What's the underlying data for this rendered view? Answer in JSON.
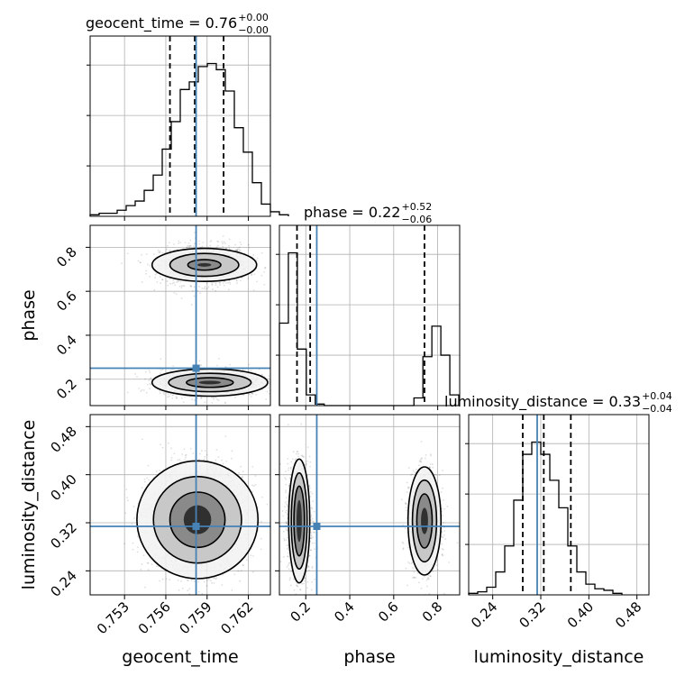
{
  "chart_data": {
    "type": "corner",
    "parameters": [
      "geocent_time",
      "phase",
      "luminosity_distance"
    ],
    "truths": {
      "geocent_time": 0.7582,
      "phase": 0.25,
      "luminosity_distance": 0.314
    },
    "colors": {
      "truth": "#4682b4",
      "hist": "#000000",
      "grid": "#b0b0b0",
      "quantile": "#000000"
    },
    "grid": true,
    "titles": [
      {
        "param": "geocent_time",
        "text": "geocent_time = 0.76",
        "plus": "+0.00",
        "minus": "−0.00"
      },
      {
        "param": "phase",
        "text": "phase = 0.22",
        "plus": "+0.52",
        "minus": "−0.06"
      },
      {
        "param": "luminosity_distance",
        "text": "luminosity_distance = 0.33",
        "plus": "+0.04",
        "minus": "−0.04"
      }
    ],
    "axis_labels": {
      "geocent_time": "geocent_time",
      "phase": "phase",
      "luminosity_distance": "luminosity_distance"
    },
    "ranges": {
      "geocent_time": [
        0.7505,
        0.7636
      ],
      "phase": [
        0.08,
        0.9
      ],
      "luminosity_distance": [
        0.2,
        0.5
      ]
    },
    "ticks": {
      "geocent_time": [
        {
          "v": 0.753,
          "label": "0.753"
        },
        {
          "v": 0.756,
          "label": "0.756"
        },
        {
          "v": 0.759,
          "label": "0.759"
        },
        {
          "v": 0.762,
          "label": "0.762"
        }
      ],
      "phase": [
        {
          "v": 0.2,
          "label": "0.2"
        },
        {
          "v": 0.4,
          "label": "0.4"
        },
        {
          "v": 0.6,
          "label": "0.6"
        },
        {
          "v": 0.8,
          "label": "0.8"
        }
      ],
      "luminosity_distance": [
        {
          "v": 0.24,
          "label": "0.24"
        },
        {
          "v": 0.32,
          "label": "0.32"
        },
        {
          "v": 0.4,
          "label": "0.40"
        },
        {
          "v": 0.48,
          "label": "0.48"
        }
      ]
    },
    "quantiles": {
      "geocent_time": [
        0.7563,
        0.7581,
        0.7602
      ],
      "phase": [
        0.16,
        0.22,
        0.74
      ],
      "luminosity_distance": [
        0.29,
        0.325,
        0.37
      ]
    },
    "histograms": {
      "geocent_time": {
        "edges_start": 0.7505,
        "bin_width": 0.000655,
        "counts": [
          1,
          2,
          2,
          4,
          7,
          10,
          17,
          27,
          44,
          62,
          83,
          88,
          98,
          100,
          96,
          82,
          58,
          42,
          22,
          8,
          3,
          1
        ]
      },
      "phase": {
        "edges_start": 0.08,
        "bin_width": 0.0408,
        "counts": [
          54,
          100,
          37,
          7,
          1,
          0,
          0,
          0,
          0,
          0,
          0,
          0,
          0,
          0,
          0,
          5,
          32,
          52,
          33,
          7
        ]
      },
      "luminosity_distance": {
        "edges_start": 0.2,
        "bin_width": 0.015,
        "counts": [
          1,
          2,
          5,
          15,
          32,
          62,
          92,
          100,
          92,
          75,
          57,
          32,
          15,
          7,
          4,
          3,
          1
        ]
      }
    },
    "hist_ymax": {
      "geocent_time": 118,
      "phase": 118,
      "luminosity_distance": 118
    },
    "hist_yticks": {
      "geocent_time": [
        33,
        66,
        99
      ],
      "phase": [
        33,
        66,
        99
      ],
      "luminosity_distance": [
        33,
        66,
        99
      ]
    },
    "density_2d": [
      {
        "x": "geocent_time",
        "y": "phase",
        "modes": [
          {
            "cx": 0.7588,
            "cy": 0.72,
            "sx": 0.0016,
            "sy": 0.045,
            "n": 1300,
            "contour_levels": [
              [
                0.0038,
                0.075
              ],
              [
                0.0025,
                0.052
              ],
              [
                0.0012,
                0.024
              ],
              [
                0.0005,
                0.008
              ]
            ]
          },
          {
            "cx": 0.7592,
            "cy": 0.185,
            "sx": 0.0018,
            "sy": 0.03,
            "n": 1700,
            "contour_levels": [
              [
                0.0042,
                0.062
              ],
              [
                0.003,
                0.042
              ],
              [
                0.0017,
                0.022
              ],
              [
                0.0008,
                0.008
              ]
            ]
          }
        ]
      },
      {
        "x": "geocent_time",
        "y": "luminosity_distance",
        "modes": [
          {
            "cx": 0.7583,
            "cy": 0.325,
            "sx": 0.0017,
            "sy": 0.042,
            "n": 2800,
            "contour_levels": [
              [
                0.0044,
                0.098
              ],
              [
                0.0032,
                0.072
              ],
              [
                0.002,
                0.046
              ],
              [
                0.001,
                0.024
              ]
            ]
          }
        ]
      },
      {
        "x": "phase",
        "y": "luminosity_distance",
        "modes": [
          {
            "cx": 0.17,
            "cy": 0.323,
            "sx": 0.025,
            "sy": 0.045,
            "n": 1800,
            "contour_levels": [
              [
                0.048,
                0.103
              ],
              [
                0.036,
                0.08
              ],
              [
                0.024,
                0.058
              ],
              [
                0.012,
                0.035
              ]
            ]
          },
          {
            "cx": 0.74,
            "cy": 0.323,
            "sx": 0.035,
            "sy": 0.04,
            "n": 1300,
            "contour_levels": [
              [
                0.075,
                0.09
              ],
              [
                0.055,
                0.068
              ],
              [
                0.035,
                0.045
              ],
              [
                0.016,
                0.022
              ]
            ]
          }
        ]
      }
    ]
  }
}
